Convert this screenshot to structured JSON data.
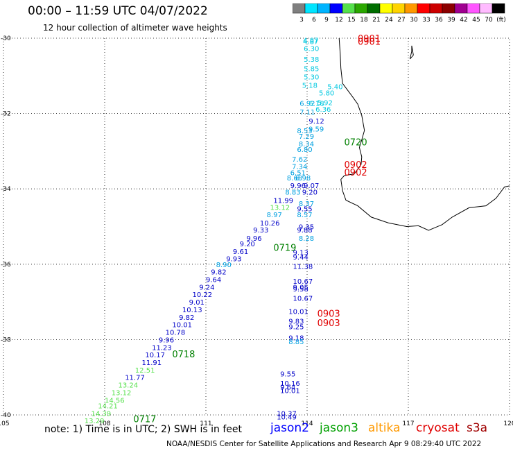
{
  "header": {
    "title": "00:00 – 11:59 UTC 04/07/2022",
    "subtitle": "12 hour collection of altimeter wave heights"
  },
  "colorbar": {
    "bins": [
      {
        "color": "#7f7f7f",
        "label": "3"
      },
      {
        "color": "#00e5ff",
        "label": "6"
      },
      {
        "color": "#00b4ff",
        "label": "9"
      },
      {
        "color": "#0000ff",
        "label": "12"
      },
      {
        "color": "#55e14b",
        "label": "15"
      },
      {
        "color": "#2aa800",
        "label": "18"
      },
      {
        "color": "#006e00",
        "label": "21"
      },
      {
        "color": "#ffff00",
        "label": "24"
      },
      {
        "color": "#ffd400",
        "label": "27"
      },
      {
        "color": "#ff9900",
        "label": "30"
      },
      {
        "color": "#ff0000",
        "label": "33"
      },
      {
        "color": "#cc0000",
        "label": "36"
      },
      {
        "color": "#8b0000",
        "label": "39"
      },
      {
        "color": "#a00090",
        "label": "42"
      },
      {
        "color": "#ff55ff",
        "label": "45"
      },
      {
        "color": "#ffbbff",
        "label": "70"
      },
      {
        "color": "#000000",
        "label": "(ft)"
      }
    ]
  },
  "axes": {
    "lat_labels": [
      "-30",
      "-32",
      "-34",
      "-36",
      "-38",
      "-40"
    ],
    "lon_labels": [
      "105",
      "108",
      "111",
      "114",
      "117",
      "120"
    ]
  },
  "track_points": [
    {
      "lon": 113.88,
      "lat": -30.08,
      "text": "4.87",
      "color": "#00c8e0"
    },
    {
      "lon": 113.88,
      "lat": -30.05,
      "text": "4.87",
      "color": "#00c8e0"
    },
    {
      "lon": 113.9,
      "lat": -30.27,
      "text": "6.30",
      "color": "#00c8e0"
    },
    {
      "lon": 113.9,
      "lat": -30.55,
      "text": "5.38",
      "color": "#00c8e0"
    },
    {
      "lon": 113.9,
      "lat": -30.8,
      "text": "5.85",
      "color": "#00c8e0"
    },
    {
      "lon": 113.9,
      "lat": -31.02,
      "text": "5.30",
      "color": "#00c8e0"
    },
    {
      "lon": 113.85,
      "lat": -31.24,
      "text": "5.18",
      "color": "#00c8e0"
    },
    {
      "lon": 114.6,
      "lat": -31.28,
      "text": "5.40",
      "color": "#00c8e0"
    },
    {
      "lon": 114.35,
      "lat": -31.45,
      "text": "5.80",
      "color": "#00c8e0"
    },
    {
      "lon": 114.3,
      "lat": -31.7,
      "text": "5.92",
      "color": "#00c8e0"
    },
    {
      "lon": 113.78,
      "lat": -31.72,
      "text": "6.92",
      "color": "#00a0e0"
    },
    {
      "lon": 114.05,
      "lat": -31.72,
      "text": "6.18",
      "color": "#00c8e0"
    },
    {
      "lon": 114.25,
      "lat": -31.88,
      "text": "6.36",
      "color": "#00c8e0"
    },
    {
      "lon": 113.78,
      "lat": -31.95,
      "text": "7.11",
      "color": "#00a0e0"
    },
    {
      "lon": 114.05,
      "lat": -32.19,
      "text": "9.12",
      "color": "#0000c8"
    },
    {
      "lon": 114.04,
      "lat": -32.4,
      "text": "9.59",
      "color": "#00a0e0"
    },
    {
      "lon": 113.7,
      "lat": -32.45,
      "text": "8.53",
      "color": "#00a0e0"
    },
    {
      "lon": 113.75,
      "lat": -32.6,
      "text": "7.29",
      "color": "#00a0e0"
    },
    {
      "lon": 113.75,
      "lat": -32.8,
      "text": "8.34",
      "color": "#00a0e0"
    },
    {
      "lon": 113.7,
      "lat": -32.95,
      "text": "6.80",
      "color": "#00a0e0"
    },
    {
      "lon": 113.55,
      "lat": -33.2,
      "text": "7.62",
      "color": "#00a0e0"
    },
    {
      "lon": 113.55,
      "lat": -33.4,
      "text": "7.34",
      "color": "#00a0e0"
    },
    {
      "lon": 113.5,
      "lat": -33.56,
      "text": "6.51",
      "color": "#00a0e0"
    },
    {
      "lon": 113.4,
      "lat": -33.7,
      "text": "8.68",
      "color": "#00a0e0"
    },
    {
      "lon": 113.65,
      "lat": -33.7,
      "text": "6.98",
      "color": "#00a0e0"
    },
    {
      "lon": 113.5,
      "lat": -33.9,
      "text": "9.96",
      "color": "#0000c8"
    },
    {
      "lon": 113.9,
      "lat": -33.9,
      "text": "9.07",
      "color": "#0000c8"
    },
    {
      "lon": 113.35,
      "lat": -34.08,
      "text": "8.83",
      "color": "#00a0e0"
    },
    {
      "lon": 113.85,
      "lat": -34.08,
      "text": "9.20",
      "color": "#0000c8"
    },
    {
      "lon": 113.0,
      "lat": -34.3,
      "text": "11.99",
      "color": "#0000c8"
    },
    {
      "lon": 113.75,
      "lat": -34.38,
      "text": "8.37",
      "color": "#00a0e0"
    },
    {
      "lon": 112.9,
      "lat": -34.48,
      "text": "13.12",
      "color": "#55e14b"
    },
    {
      "lon": 113.7,
      "lat": -34.52,
      "text": "9.55",
      "color": "#0000c8"
    },
    {
      "lon": 112.8,
      "lat": -34.68,
      "text": "8.97",
      "color": "#00a0e0"
    },
    {
      "lon": 113.7,
      "lat": -34.68,
      "text": "8.57",
      "color": "#00a0e0"
    },
    {
      "lon": 112.6,
      "lat": -34.9,
      "text": "10.26",
      "color": "#0000c8"
    },
    {
      "lon": 113.75,
      "lat": -35.0,
      "text": "9.35",
      "color": "#0000c8"
    },
    {
      "lon": 112.4,
      "lat": -35.08,
      "text": "9.33",
      "color": "#0000c8"
    },
    {
      "lon": 113.7,
      "lat": -35.08,
      "text": "9.88",
      "color": "#0000c8"
    },
    {
      "lon": 113.75,
      "lat": -35.3,
      "text": "8.28",
      "color": "#00a0e0"
    },
    {
      "lon": 112.0,
      "lat": -35.45,
      "text": "9.20",
      "color": "#0000c8"
    },
    {
      "lon": 112.2,
      "lat": -35.3,
      "text": "9.96",
      "color": "#0000c8"
    },
    {
      "lon": 111.8,
      "lat": -35.65,
      "text": "9.61",
      "color": "#0000c8"
    },
    {
      "lon": 113.58,
      "lat": -35.68,
      "text": "9.13",
      "color": "#0000c8"
    },
    {
      "lon": 113.58,
      "lat": -35.8,
      "text": "9.44",
      "color": "#0000c8"
    },
    {
      "lon": 111.6,
      "lat": -35.85,
      "text": "9.93",
      "color": "#0000c8"
    },
    {
      "lon": 111.3,
      "lat": -36.0,
      "text": "8.90",
      "color": "#00a0e0"
    },
    {
      "lon": 113.58,
      "lat": -36.05,
      "text": "11.38",
      "color": "#0000c8"
    },
    {
      "lon": 111.15,
      "lat": -36.2,
      "text": "9.82",
      "color": "#0000c8"
    },
    {
      "lon": 111.0,
      "lat": -36.4,
      "text": "9.64",
      "color": "#0000c8"
    },
    {
      "lon": 113.58,
      "lat": -36.45,
      "text": "10.67",
      "color": "#0000c8"
    },
    {
      "lon": 110.8,
      "lat": -36.6,
      "text": "9.24",
      "color": "#0000c8"
    },
    {
      "lon": 113.58,
      "lat": -36.6,
      "text": "9.05",
      "color": "#0000c8"
    },
    {
      "lon": 113.58,
      "lat": -36.65,
      "text": "9.58",
      "color": "#0000c8"
    },
    {
      "lon": 110.6,
      "lat": -36.8,
      "text": "10.22",
      "color": "#0000c8"
    },
    {
      "lon": 113.58,
      "lat": -36.9,
      "text": "10.67",
      "color": "#0000c8"
    },
    {
      "lon": 110.5,
      "lat": -37.0,
      "text": "9.01",
      "color": "#0000c8"
    },
    {
      "lon": 110.3,
      "lat": -37.2,
      "text": "10.13",
      "color": "#0000c8"
    },
    {
      "lon": 113.45,
      "lat": -37.25,
      "text": "10.01",
      "color": "#0000c8"
    },
    {
      "lon": 110.2,
      "lat": -37.4,
      "text": "9.82",
      "color": "#0000c8"
    },
    {
      "lon": 113.45,
      "lat": -37.5,
      "text": "9.83",
      "color": "#0000c8"
    },
    {
      "lon": 110.0,
      "lat": -37.6,
      "text": "10.01",
      "color": "#0000c8"
    },
    {
      "lon": 113.45,
      "lat": -37.65,
      "text": "9.25",
      "color": "#0000c8"
    },
    {
      "lon": 109.8,
      "lat": -37.8,
      "text": "10.78",
      "color": "#0000c8"
    },
    {
      "lon": 109.6,
      "lat": -38.0,
      "text": "9.96",
      "color": "#0000c8"
    },
    {
      "lon": 113.45,
      "lat": -37.95,
      "text": "9.18",
      "color": "#0000c8"
    },
    {
      "lon": 113.45,
      "lat": -38.05,
      "text": "8.85",
      "color": "#00a0e0"
    },
    {
      "lon": 109.4,
      "lat": -38.2,
      "text": "11.23",
      "color": "#0000c8"
    },
    {
      "lon": 109.2,
      "lat": -38.4,
      "text": "10.17",
      "color": "#0000c8"
    },
    {
      "lon": 109.1,
      "lat": -38.6,
      "text": "11.91",
      "color": "#0000c8"
    },
    {
      "lon": 108.9,
      "lat": -38.8,
      "text": "12.51",
      "color": "#55e14b"
    },
    {
      "lon": 113.2,
      "lat": -38.9,
      "text": "9.55",
      "color": "#0000c8"
    },
    {
      "lon": 108.6,
      "lat": -39.0,
      "text": "11.77",
      "color": "#0000c8"
    },
    {
      "lon": 113.2,
      "lat": -39.15,
      "text": "10.16",
      "color": "#0000c8"
    },
    {
      "lon": 108.4,
      "lat": -39.2,
      "text": "13.24",
      "color": "#55e14b"
    },
    {
      "lon": 113.2,
      "lat": -39.25,
      "text": "9.64",
      "color": "#0000c8"
    },
    {
      "lon": 113.2,
      "lat": -39.35,
      "text": "10.01",
      "color": "#0000c8"
    },
    {
      "lon": 108.2,
      "lat": -39.4,
      "text": "13.12",
      "color": "#55e14b"
    },
    {
      "lon": 108.0,
      "lat": -39.6,
      "text": "14.56",
      "color": "#55e14b"
    },
    {
      "lon": 107.8,
      "lat": -39.75,
      "text": "14.21",
      "color": "#55e14b"
    },
    {
      "lon": 107.6,
      "lat": -39.95,
      "text": "14.39",
      "color": "#55e14b"
    },
    {
      "lon": 113.1,
      "lat": -39.95,
      "text": "10.37",
      "color": "#0000c8"
    },
    {
      "lon": 113.1,
      "lat": -40.05,
      "text": "10.49",
      "color": "#0000c8"
    },
    {
      "lon": 107.4,
      "lat": -40.15,
      "text": "13.29",
      "color": "#55e14b"
    }
  ],
  "time_stamps": [
    {
      "lon": 115.5,
      "lat": -30.0,
      "text": "0901",
      "color": "#e00000"
    },
    {
      "lon": 115.5,
      "lat": -30.08,
      "text": "0901",
      "color": "#e00000"
    },
    {
      "lon": 115.1,
      "lat": -32.75,
      "text": "0720",
      "color": "#008000"
    },
    {
      "lon": 115.1,
      "lat": -33.35,
      "text": "0902",
      "color": "#e00000"
    },
    {
      "lon": 115.1,
      "lat": -33.55,
      "text": "0902",
      "color": "#e00000"
    },
    {
      "lon": 113.0,
      "lat": -35.55,
      "text": "0719",
      "color": "#008000"
    },
    {
      "lon": 114.3,
      "lat": -37.3,
      "text": "0903",
      "color": "#e00000"
    },
    {
      "lon": 114.3,
      "lat": -37.55,
      "text": "0903",
      "color": "#e00000"
    },
    {
      "lon": 110.0,
      "lat": -38.38,
      "text": "0718",
      "color": "#008000"
    },
    {
      "lon": 108.85,
      "lat": -40.1,
      "text": "0717",
      "color": "#008000"
    }
  ],
  "note": "note: 1) Time is in UTC; 2) SWH is in feet",
  "satellites": [
    {
      "name": "jason2",
      "color": "#0000ff"
    },
    {
      "name": "jason3",
      "color": "#00a000"
    },
    {
      "name": "altika",
      "color": "#ff9900"
    },
    {
      "name": "cryosat",
      "color": "#e00000"
    },
    {
      "name": "s3a",
      "color": "#a00000"
    }
  ],
  "footer": "NOAA/NESDIS Center for Satellite Applications and Research   Apr  9 08:29:40 UTC 2022"
}
